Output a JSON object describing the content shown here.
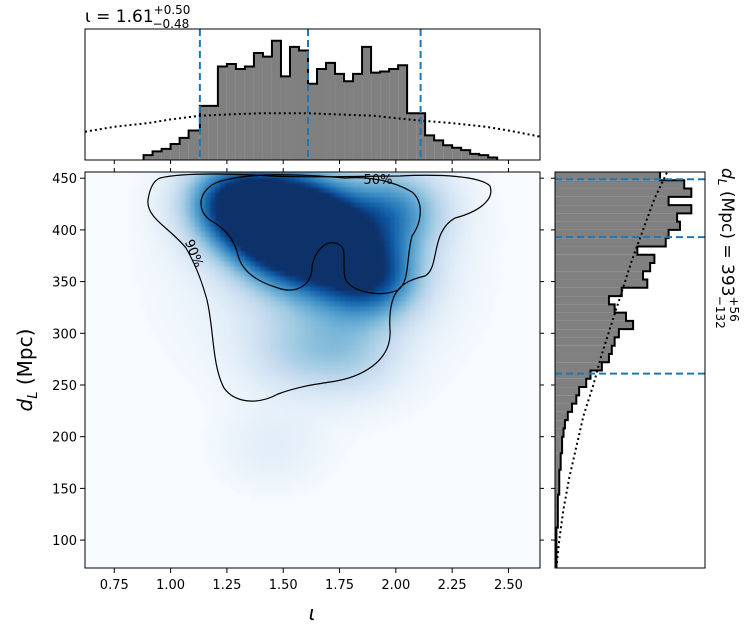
{
  "chart_data": {
    "type": "heatmap",
    "title": "ι = 1.61",
    "title_sup": "+0.50",
    "title_sub": "−0.48",
    "xlabel": "ι",
    "ylabel": "d",
    "ylabel_sub": "L",
    "ylabel_unit": " (Mpc)",
    "right_label": "d",
    "right_label_sub": "L",
    "right_label_rest": " (Mpc) = 393",
    "right_label_sup": "+56",
    "right_label_sub2": "−132",
    "xlim": [
      0.62,
      2.64
    ],
    "ylim": [
      73,
      456
    ],
    "xticks": [
      "0.75",
      "1.00",
      "1.25",
      "1.50",
      "1.75",
      "2.00",
      "2.25",
      "2.50"
    ],
    "yticks": [
      "100",
      "150",
      "200",
      "250",
      "300",
      "350",
      "400",
      "450"
    ],
    "contour_labels": [
      "50%",
      "90%"
    ],
    "colormap": "Blues",
    "x_quantiles": [
      1.13,
      1.61,
      2.11
    ],
    "y_quantiles": [
      261,
      393,
      449
    ],
    "quantile_color": "#1f77b4",
    "hist_fill_color": "#808080",
    "density_peaks": [
      {
        "x": 1.3,
        "y": 428,
        "w": 1.0
      },
      {
        "x": 1.55,
        "y": 420,
        "w": 0.75
      },
      {
        "x": 1.45,
        "y": 395,
        "w": 0.7
      },
      {
        "x": 1.88,
        "y": 355,
        "w": 0.85
      },
      {
        "x": 1.7,
        "y": 400,
        "w": 0.6
      },
      {
        "x": 2.0,
        "y": 420,
        "w": 0.55
      },
      {
        "x": 1.6,
        "y": 370,
        "w": 0.45
      },
      {
        "x": 1.8,
        "y": 280,
        "w": 0.25
      },
      {
        "x": 1.55,
        "y": 285,
        "w": 0.2
      },
      {
        "x": 1.45,
        "y": 190,
        "w": 0.1
      }
    ],
    "x_hist": {
      "edges": [
        0.88,
        0.92,
        0.96,
        1.0,
        1.04,
        1.08,
        1.13,
        1.17,
        1.21,
        1.25,
        1.29,
        1.33,
        1.37,
        1.41,
        1.45,
        1.49,
        1.53,
        1.57,
        1.61,
        1.65,
        1.69,
        1.73,
        1.77,
        1.81,
        1.85,
        1.89,
        1.93,
        1.97,
        2.01,
        2.05,
        2.09,
        2.13,
        2.17,
        2.21,
        2.25,
        2.29,
        2.33,
        2.37,
        2.41,
        2.45
      ],
      "counts": [
        0.04,
        0.07,
        0.09,
        0.13,
        0.18,
        0.24,
        0.44,
        0.44,
        0.76,
        0.78,
        0.74,
        0.76,
        0.87,
        0.84,
        0.97,
        0.68,
        0.92,
        0.89,
        0.62,
        0.74,
        0.79,
        0.7,
        0.64,
        0.7,
        0.92,
        0.71,
        0.72,
        0.74,
        0.77,
        0.38,
        0.38,
        0.2,
        0.16,
        0.12,
        0.1,
        0.08,
        0.05,
        0.04,
        0.02
      ]
    },
    "x_prior": {
      "x": [
        0.62,
        0.75,
        0.9,
        1.0,
        1.13,
        1.25,
        1.4,
        1.5,
        1.61,
        1.75,
        1.9,
        2.0,
        2.11,
        2.25,
        2.4,
        2.5,
        2.64
      ],
      "y": [
        0.23,
        0.27,
        0.3,
        0.33,
        0.36,
        0.37,
        0.38,
        0.38,
        0.38,
        0.37,
        0.36,
        0.34,
        0.32,
        0.3,
        0.27,
        0.24,
        0.19
      ]
    },
    "y_hist": {
      "edges": [
        73,
        80,
        88,
        96,
        104,
        112,
        120,
        128,
        136,
        144,
        152,
        160,
        168,
        176,
        184,
        192,
        200,
        208,
        216,
        224,
        232,
        240,
        248,
        256,
        264,
        272,
        280,
        288,
        296,
        304,
        312,
        320,
        328,
        336,
        344,
        352,
        360,
        368,
        376,
        384,
        392,
        400,
        408,
        416,
        424,
        432,
        440,
        448,
        456
      ],
      "counts": [
        0.01,
        0.01,
        0.01,
        0.01,
        0.01,
        0.02,
        0.02,
        0.02,
        0.02,
        0.03,
        0.03,
        0.03,
        0.04,
        0.04,
        0.05,
        0.05,
        0.06,
        0.07,
        0.09,
        0.12,
        0.15,
        0.17,
        0.22,
        0.25,
        0.33,
        0.38,
        0.4,
        0.42,
        0.45,
        0.55,
        0.5,
        0.42,
        0.38,
        0.47,
        0.65,
        0.62,
        0.67,
        0.7,
        0.58,
        0.78,
        0.8,
        0.88,
        0.86,
        0.96,
        0.8,
        0.96,
        0.91,
        0.74
      ]
    },
    "y_prior": {
      "y": [
        73,
        100,
        130,
        160,
        190,
        220,
        250,
        280,
        310,
        340,
        370,
        400,
        430,
        456
      ],
      "x": [
        0.01,
        0.03,
        0.06,
        0.1,
        0.15,
        0.2,
        0.27,
        0.33,
        0.4,
        0.47,
        0.54,
        0.62,
        0.7,
        0.79
      ]
    }
  }
}
